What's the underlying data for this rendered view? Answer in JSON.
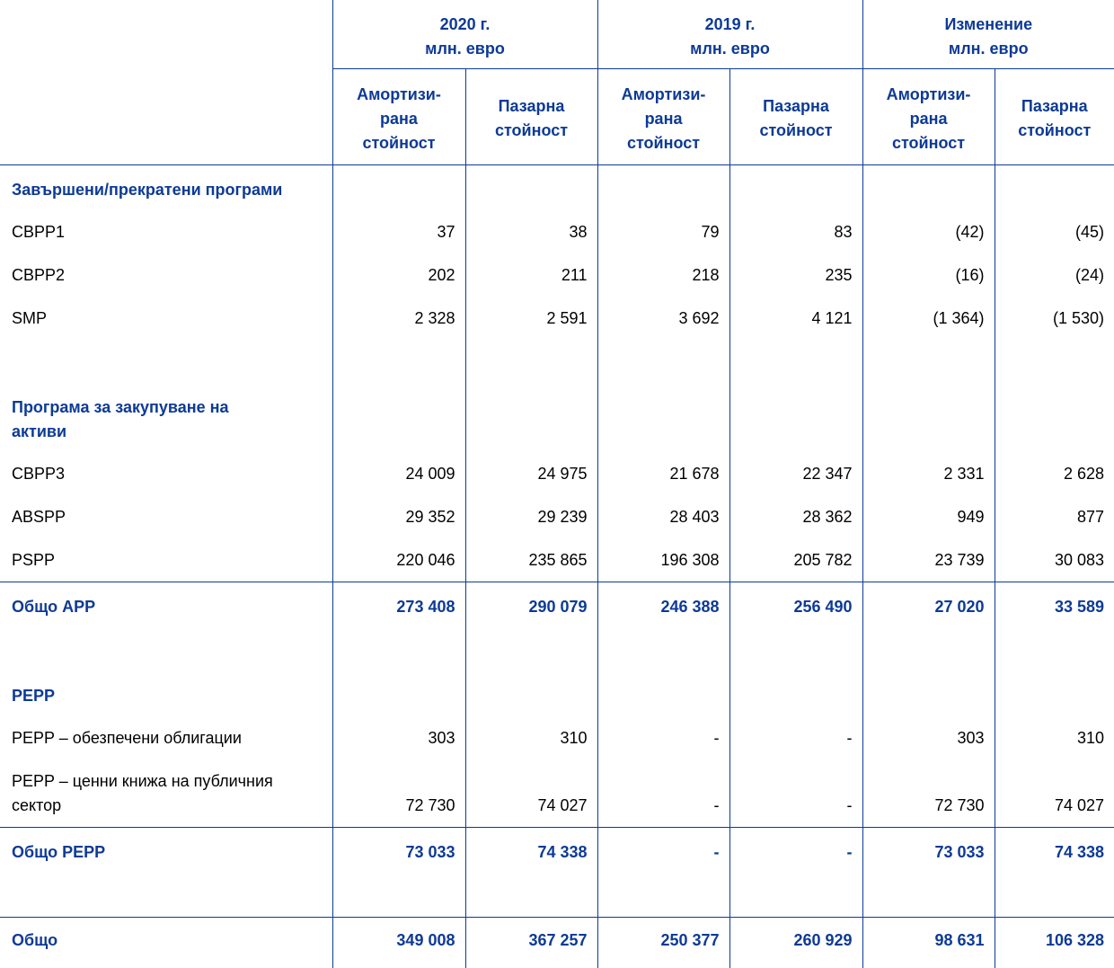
{
  "table": {
    "groups": [
      {
        "year": "2020 г.",
        "unit": "млн. евро"
      },
      {
        "year": "2019 г.",
        "unit": "млн. евро"
      },
      {
        "year": "Изменение",
        "unit": "млн. евро"
      }
    ],
    "subheaders": [
      "Амортизи-\nрана\nстойност",
      "Пазарна\nстойност",
      "Амортизи-\nрана\nстойност",
      "Пазарна\nстойност",
      "Амортизи-\nрана\nстойност",
      "Пазарна\nстойност"
    ],
    "sections": [
      {
        "title": "Завършени/прекратени програми",
        "rows": [
          {
            "label": "CBPP1",
            "values": [
              "37",
              "38",
              "79",
              "83",
              "(42)",
              "(45)"
            ]
          },
          {
            "label": "CBPP2",
            "values": [
              "202",
              "211",
              "218",
              "235",
              "(16)",
              "(24)"
            ]
          },
          {
            "label": "SMP",
            "values": [
              "2 328",
              "2 591",
              "3 692",
              "4 121",
              "(1 364)",
              "(1 530)"
            ]
          }
        ]
      },
      {
        "title": "Програма за закупуване на\nактиви",
        "rows": [
          {
            "label": "CBPP3",
            "values": [
              "24 009",
              "24 975",
              "21 678",
              "22 347",
              "2 331",
              "2 628"
            ]
          },
          {
            "label": "ABSPP",
            "values": [
              "29 352",
              "29 239",
              "28 403",
              "28 362",
              "949",
              "877"
            ]
          },
          {
            "label": "PSPP",
            "values": [
              "220 046",
              "235 865",
              "196 308",
              "205 782",
              "23 739",
              "30 083"
            ]
          }
        ],
        "total": {
          "label": "Общо APP",
          "values": [
            "273 408",
            "290 079",
            "246 388",
            "256 490",
            "27 020",
            "33 589"
          ]
        }
      },
      {
        "title": "PEPP",
        "rows": [
          {
            "label": "PEPP – обезпечени облигации",
            "values": [
              "303",
              "310",
              "-",
              "-",
              "303",
              "310"
            ]
          },
          {
            "label": "PEPP – ценни книжа на публичния\nсектор",
            "values": [
              "72 730",
              "74 027",
              "-",
              "-",
              "72 730",
              "74 027"
            ]
          }
        ],
        "total": {
          "label": "Общо PEPP",
          "values": [
            "73 033",
            "74 338",
            "-",
            "-",
            "73 033",
            "74 338"
          ]
        }
      }
    ],
    "total": {
      "label": "Общо",
      "values": [
        "349 008",
        "367 257",
        "250 377",
        "260 929",
        "98 631",
        "106 328"
      ]
    }
  }
}
